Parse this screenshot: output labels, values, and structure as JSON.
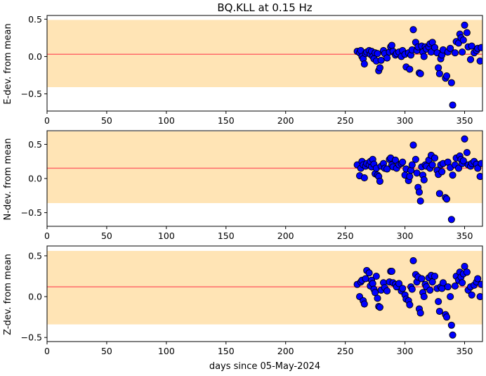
{
  "title": "BQ.KLL at 0.15 Hz",
  "chart_data": [
    {
      "type": "scatter",
      "ylabel": "E-dev. from mean",
      "xlabel": "",
      "xlim": [
        0,
        365
      ],
      "ylim": [
        -0.73,
        0.55
      ],
      "xticks": [
        0,
        50,
        100,
        150,
        200,
        250,
        300,
        350
      ],
      "yticks": [
        -0.5,
        0.0,
        0.5
      ],
      "ytick_labels": [
        "−0.5",
        "0.0",
        "0.5"
      ],
      "band": [
        -0.41,
        0.49
      ],
      "mean_line": 0.03,
      "colors": {
        "band": "#ffe4b5",
        "mean": "#ff6a6a",
        "marker": "#0000ff",
        "marker_edge": "#000000"
      },
      "x": [
        260,
        262,
        263,
        264,
        265,
        266,
        267,
        268,
        270,
        271,
        272,
        273,
        274,
        275,
        276,
        277,
        278,
        279,
        280,
        282,
        283,
        285,
        287,
        288,
        289,
        290,
        292,
        293,
        295,
        297,
        298,
        300,
        301,
        303,
        304,
        305,
        306,
        307,
        309,
        310,
        311,
        312,
        313,
        314,
        315,
        316,
        317,
        318,
        320,
        321,
        322,
        323,
        325,
        327,
        328,
        329,
        330,
        331,
        332,
        334,
        335,
        336,
        338,
        339,
        340,
        342,
        343,
        345,
        346,
        347,
        348,
        349,
        350,
        352,
        353,
        355,
        356,
        358,
        360,
        361,
        363,
        364
      ],
      "y": [
        0.07,
        0.05,
        0.08,
        0.0,
        -0.03,
        -0.1,
        0.04,
        0.06,
        0.08,
        0.03,
        0.07,
        0.0,
        -0.03,
        0.05,
        -0.06,
        0.04,
        -0.19,
        -0.15,
        -0.05,
        0.08,
        0.04,
        -0.02,
        0.06,
        0.13,
        0.15,
        0.07,
        0.02,
        0.04,
        0.06,
        0.0,
        0.08,
        0.03,
        -0.14,
        0.05,
        -0.17,
        0.02,
        0.09,
        0.36,
        0.19,
        0.08,
        0.13,
        -0.22,
        -0.23,
        0.14,
        0.06,
        0.0,
        0.13,
        0.1,
        0.13,
        0.17,
        0.06,
        0.19,
        0.12,
        0.05,
        -0.15,
        -0.23,
        -0.03,
        0.02,
        0.09,
        -0.29,
        -0.26,
        0.06,
        0.11,
        -0.35,
        -0.65,
        0.05,
        0.2,
        0.18,
        0.3,
        0.25,
        0.06,
        0.22,
        0.42,
        0.32,
        0.13,
        -0.04,
        0.14,
        0.05,
        0.08,
        0.11,
        -0.06,
        0.12
      ]
    },
    {
      "type": "scatter",
      "ylabel": "N-dev. from mean",
      "xlabel": "",
      "xlim": [
        0,
        365
      ],
      "ylim": [
        -0.7,
        0.7
      ],
      "xticks": [
        0,
        50,
        100,
        150,
        200,
        250,
        300,
        350
      ],
      "yticks": [
        -0.5,
        0.0,
        0.5
      ],
      "ytick_labels": [
        "−0.5",
        "0.0",
        "0.5"
      ],
      "band": [
        -0.36,
        0.69
      ],
      "mean_line": 0.15,
      "colors": {
        "band": "#ffe4b5",
        "mean": "#ff6a6a",
        "marker": "#0000ff",
        "marker_edge": "#000000"
      },
      "x": [
        260,
        262,
        263,
        264,
        265,
        266,
        267,
        268,
        270,
        271,
        272,
        273,
        274,
        275,
        276,
        277,
        278,
        279,
        280,
        282,
        283,
        285,
        287,
        288,
        289,
        290,
        292,
        293,
        295,
        297,
        298,
        300,
        301,
        303,
        304,
        305,
        306,
        307,
        309,
        310,
        311,
        312,
        313,
        314,
        315,
        316,
        317,
        318,
        320,
        321,
        322,
        323,
        325,
        327,
        328,
        329,
        330,
        331,
        332,
        334,
        335,
        336,
        338,
        339,
        340,
        342,
        343,
        345,
        346,
        347,
        348,
        349,
        350,
        352,
        353,
        355,
        356,
        358,
        360,
        361,
        363,
        364
      ],
      "y": [
        0.2,
        0.04,
        0.15,
        0.25,
        0.2,
        0.01,
        0.18,
        0.22,
        0.2,
        0.25,
        0.17,
        0.28,
        0.21,
        0.07,
        0.15,
        0.05,
        0.03,
        -0.04,
        0.18,
        0.22,
        0.15,
        0.14,
        0.28,
        0.3,
        0.2,
        0.17,
        0.27,
        0.15,
        0.2,
        0.22,
        0.24,
        0.05,
        0.14,
        -0.03,
        0.03,
        0.12,
        0.2,
        0.49,
        0.28,
        0.08,
        -0.13,
        -0.2,
        -0.33,
        0.17,
        0.05,
        -0.02,
        0.2,
        0.18,
        0.27,
        0.15,
        0.34,
        0.2,
        0.3,
        0.12,
        0.06,
        -0.22,
        0.2,
        0.1,
        0.22,
        -0.28,
        -0.3,
        0.24,
        0.16,
        -0.6,
        0.05,
        0.2,
        0.3,
        0.15,
        0.33,
        0.28,
        0.22,
        0.26,
        0.58,
        0.38,
        0.2,
        0.18,
        0.22,
        0.25,
        0.21,
        0.15,
        0.03,
        0.22
      ]
    },
    {
      "type": "scatter",
      "ylabel": "Z-dev. from mean",
      "xlabel": "days since 05-May-2024",
      "xlim": [
        0,
        365
      ],
      "ylim": [
        -0.55,
        0.62
      ],
      "xticks": [
        0,
        50,
        100,
        150,
        200,
        250,
        300,
        350
      ],
      "yticks": [
        -0.5,
        0.0,
        0.5
      ],
      "ytick_labels": [
        "−0.5",
        "0.0",
        "0.5"
      ],
      "band": [
        -0.34,
        0.56
      ],
      "mean_line": 0.12,
      "colors": {
        "band": "#ffe4b5",
        "mean": "#ff6a6a",
        "marker": "#0000ff",
        "marker_edge": "#000000"
      },
      "x": [
        260,
        262,
        263,
        264,
        265,
        266,
        267,
        268,
        270,
        271,
        272,
        273,
        274,
        275,
        276,
        277,
        278,
        279,
        280,
        282,
        283,
        285,
        287,
        288,
        289,
        290,
        292,
        293,
        295,
        297,
        298,
        300,
        301,
        303,
        304,
        305,
        306,
        307,
        309,
        310,
        311,
        312,
        313,
        314,
        315,
        316,
        317,
        318,
        320,
        321,
        322,
        323,
        325,
        327,
        328,
        329,
        330,
        331,
        332,
        334,
        335,
        336,
        338,
        339,
        340,
        342,
        343,
        345,
        346,
        347,
        348,
        349,
        350,
        352,
        353,
        355,
        356,
        358,
        360,
        361,
        363,
        364
      ],
      "y": [
        0.15,
        0.0,
        0.18,
        0.2,
        -0.05,
        -0.09,
        0.22,
        0.32,
        0.29,
        0.13,
        0.2,
        0.16,
        0.09,
        0.05,
        0.25,
        -0.02,
        -0.12,
        -0.13,
        0.08,
        0.17,
        0.11,
        0.07,
        0.18,
        0.31,
        0.31,
        0.17,
        0.15,
        0.12,
        0.16,
        0.07,
        0.1,
        0.02,
        -0.03,
        -0.05,
        -0.1,
        0.12,
        0.09,
        0.44,
        0.27,
        0.18,
        0.24,
        -0.15,
        -0.2,
        0.22,
        0.05,
        0.0,
        0.15,
        0.12,
        0.23,
        0.08,
        0.26,
        0.18,
        0.25,
        0.1,
        -0.06,
        -0.18,
        0.12,
        0.1,
        0.17,
        -0.22,
        -0.25,
        0.12,
        0.0,
        -0.35,
        -0.47,
        0.13,
        0.25,
        0.2,
        0.3,
        0.24,
        0.17,
        0.28,
        0.37,
        0.3,
        0.08,
        0.12,
        0.02,
        0.14,
        0.18,
        0.22,
        0.0,
        0.15
      ]
    }
  ]
}
